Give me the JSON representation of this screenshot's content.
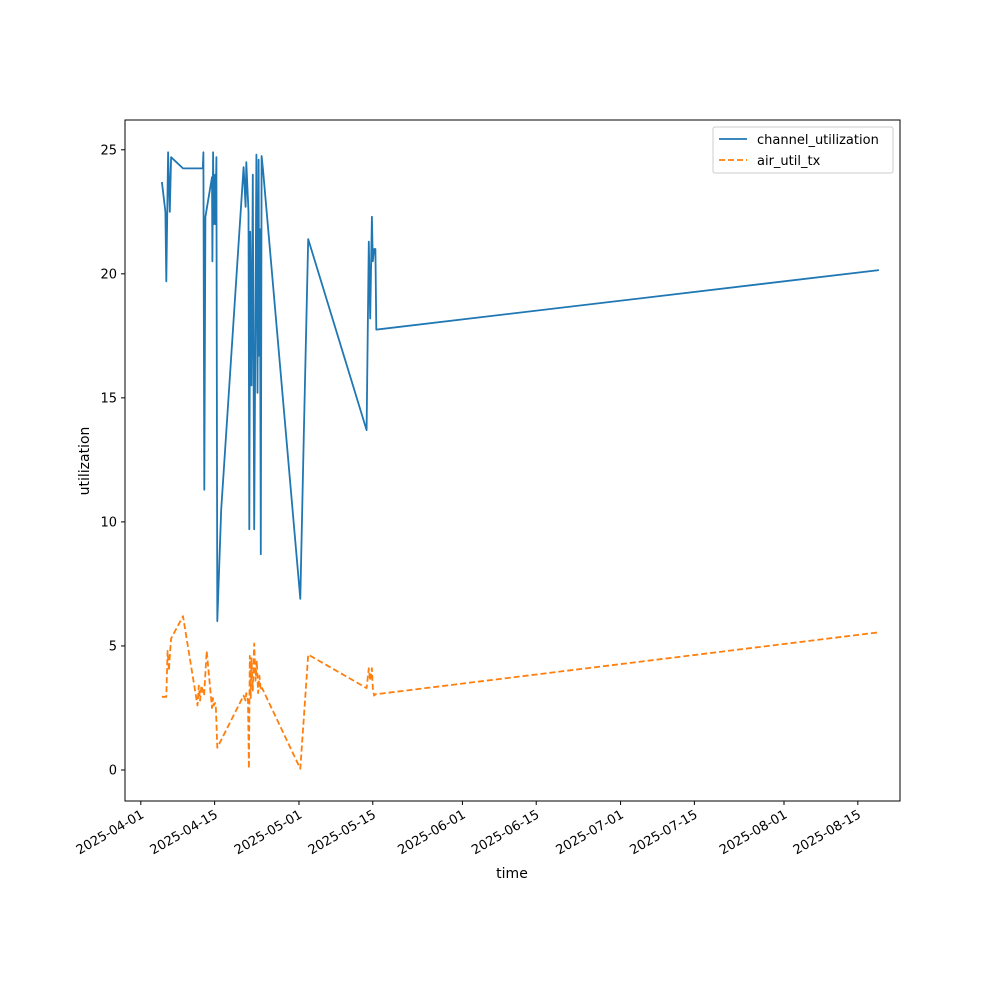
{
  "chart_data": {
    "type": "line",
    "title": "",
    "xlabel": "time",
    "ylabel": "utilization",
    "x_axis": "date",
    "xlim": [
      "2025-03-29",
      "2025-08-23"
    ],
    "ylim": [
      -1.25,
      26.2
    ],
    "grid": false,
    "legend_position": "top-right",
    "x_ticks": [
      "2025-04-01",
      "2025-04-15",
      "2025-05-01",
      "2025-05-15",
      "2025-06-01",
      "2025-06-15",
      "2025-07-01",
      "2025-07-15",
      "2025-08-01",
      "2025-08-15"
    ],
    "y_ticks": [
      0,
      5,
      10,
      15,
      20,
      25
    ],
    "series": [
      {
        "name": "channel_utilization",
        "color": "#1f77b4",
        "dash": "solid",
        "points": [
          [
            "2025-04-05T00:00",
            23.7
          ],
          [
            "2025-04-05T16:00",
            22.5
          ],
          [
            "2025-04-05T20:00",
            19.7
          ],
          [
            "2025-04-06T04:00",
            24.9
          ],
          [
            "2025-04-06T12:00",
            22.5
          ],
          [
            "2025-04-06T18:00",
            24.7
          ],
          [
            "2025-04-09T00:00",
            24.25
          ],
          [
            "2025-04-12T18:00",
            24.25
          ],
          [
            "2025-04-12T21:00",
            24.9
          ],
          [
            "2025-04-13T01:00",
            11.3
          ],
          [
            "2025-04-13T06:00",
            22.3
          ],
          [
            "2025-04-14T12:00",
            23.9
          ],
          [
            "2025-04-14T14:00",
            20.5
          ],
          [
            "2025-04-14T17:00",
            24.9
          ],
          [
            "2025-04-14T20:00",
            22.0
          ],
          [
            "2025-04-15T02:00",
            24.0
          ],
          [
            "2025-04-15T04:00",
            22.0
          ],
          [
            "2025-04-15T08:00",
            24.7
          ],
          [
            "2025-04-15T12:00",
            6.0
          ],
          [
            "2025-04-16T06:00",
            10.5
          ],
          [
            "2025-04-20T12:00",
            24.3
          ],
          [
            "2025-04-20T21:00",
            22.7
          ],
          [
            "2025-04-21T00:00",
            24.5
          ],
          [
            "2025-04-21T10:00",
            22.5
          ],
          [
            "2025-04-21T14:00",
            9.7
          ],
          [
            "2025-04-21T18:00",
            21.7
          ],
          [
            "2025-04-22T00:00",
            15.5
          ],
          [
            "2025-04-22T06:00",
            24.0
          ],
          [
            "2025-04-22T12:00",
            9.7
          ],
          [
            "2025-04-22T22:00",
            24.8
          ],
          [
            "2025-04-23T03:00",
            15.2
          ],
          [
            "2025-04-23T08:00",
            24.6
          ],
          [
            "2025-04-23T11:00",
            16.7
          ],
          [
            "2025-04-23T14:00",
            21.8
          ],
          [
            "2025-04-23T18:00",
            8.7
          ],
          [
            "2025-04-23T22:00",
            24.75
          ],
          [
            "2025-04-24T04:00",
            24.2
          ],
          [
            "2025-05-01T06:00",
            6.9
          ],
          [
            "2025-05-01T22:00",
            13.5
          ],
          [
            "2025-05-02T18:00",
            21.4
          ],
          [
            "2025-05-13T20:00",
            13.7
          ],
          [
            "2025-05-14T06:00",
            21.3
          ],
          [
            "2025-05-14T12:00",
            18.2
          ],
          [
            "2025-05-14T20:00",
            22.3
          ],
          [
            "2025-05-15T00:00",
            20.5
          ],
          [
            "2025-05-15T06:00",
            21.0
          ],
          [
            "2025-05-15T12:00",
            21.0
          ],
          [
            "2025-05-15T16:00",
            17.75
          ],
          [
            "2025-08-19T00:00",
            20.15
          ]
        ]
      },
      {
        "name": "air_util_tx",
        "color": "#ff7f0e",
        "dash": "dashed",
        "points": [
          [
            "2025-04-05T00:00",
            2.95
          ],
          [
            "2025-04-05T20:00",
            2.95
          ],
          [
            "2025-04-06T02:00",
            4.8
          ],
          [
            "2025-04-06T08:00",
            4.0
          ],
          [
            "2025-04-06T12:00",
            4.6
          ],
          [
            "2025-04-06T18:00",
            5.3
          ],
          [
            "2025-04-09T00:00",
            6.2
          ],
          [
            "2025-04-11T18:00",
            2.6
          ],
          [
            "2025-04-12T00:00",
            3.4
          ],
          [
            "2025-04-12T06:00",
            2.8
          ],
          [
            "2025-04-12T12:00",
            3.4
          ],
          [
            "2025-04-13T00:00",
            3.0
          ],
          [
            "2025-04-13T12:00",
            4.8
          ],
          [
            "2025-04-14T12:00",
            2.5
          ],
          [
            "2025-04-14T16:00",
            2.9
          ],
          [
            "2025-04-14T20:00",
            2.6
          ],
          [
            "2025-04-15T02:00",
            2.7
          ],
          [
            "2025-04-15T06:00",
            2.5
          ],
          [
            "2025-04-15T12:00",
            0.9
          ],
          [
            "2025-04-20T12:00",
            3.0
          ],
          [
            "2025-04-20T21:00",
            2.8
          ],
          [
            "2025-04-21T00:00",
            3.1
          ],
          [
            "2025-04-21T08:00",
            2.8
          ],
          [
            "2025-04-21T12:00",
            0.05
          ],
          [
            "2025-04-21T16:00",
            4.6
          ],
          [
            "2025-04-21T20:00",
            2.9
          ],
          [
            "2025-04-22T00:00",
            4.5
          ],
          [
            "2025-04-22T06:00",
            3.2
          ],
          [
            "2025-04-22T12:00",
            5.1
          ],
          [
            "2025-04-22T18:00",
            3.6
          ],
          [
            "2025-04-23T00:00",
            4.4
          ],
          [
            "2025-04-23T06:00",
            3.1
          ],
          [
            "2025-04-23T12:00",
            3.8
          ],
          [
            "2025-04-23T18:00",
            3.2
          ],
          [
            "2025-04-24T00:00",
            3.3
          ],
          [
            "2025-05-01T06:00",
            0.05
          ],
          [
            "2025-05-02T18:00",
            4.65
          ],
          [
            "2025-05-13T20:00",
            3.3
          ],
          [
            "2025-05-14T06:00",
            4.1
          ],
          [
            "2025-05-14T12:00",
            3.6
          ],
          [
            "2025-05-14T20:00",
            4.1
          ],
          [
            "2025-05-15T00:00",
            3.3
          ],
          [
            "2025-05-15T06:00",
            3.0
          ],
          [
            "2025-05-15T12:00",
            3.05
          ],
          [
            "2025-08-19T00:00",
            5.55
          ]
        ]
      }
    ]
  }
}
